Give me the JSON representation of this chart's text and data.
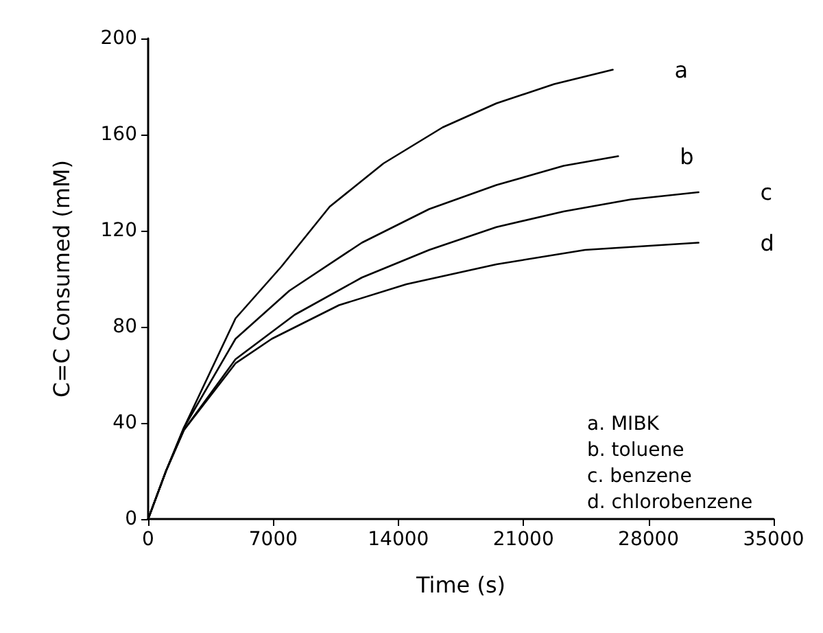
{
  "chart_data": {
    "type": "line",
    "xlabel": "Time (s)",
    "ylabel": "C=C Consumed (mM)",
    "xlim": [
      0,
      35000
    ],
    "xticks": [
      0,
      7000,
      14000,
      21000,
      28000,
      35000
    ],
    "ylim": [
      0,
      200
    ],
    "yticks": [
      0,
      40,
      80,
      120,
      160,
      200
    ],
    "grid": false,
    "legend": false,
    "marker": "none",
    "line_style": "solid",
    "annotations": [
      "a. MIBK",
      "b. toluene",
      "c. benzene",
      "d. chlorobenzene"
    ],
    "series": [
      {
        "name": "a",
        "color": "#000000",
        "x": [
          0,
          1000,
          2000,
          4890,
          7450,
          10160,
          13170,
          16480,
          19490,
          22720,
          26000
        ],
        "values": [
          0,
          20,
          38,
          83.5,
          105,
          130,
          148,
          163,
          173,
          181,
          187
        ]
      },
      {
        "name": "b",
        "color": "#000000",
        "x": [
          0,
          1000,
          2000,
          4890,
          7900,
          11960,
          15730,
          19490,
          23250,
          26300
        ],
        "values": [
          0,
          20,
          38,
          75,
          95,
          115,
          129,
          139,
          147,
          151
        ]
      },
      {
        "name": "c",
        "color": "#000000",
        "x": [
          0,
          1000,
          2000,
          4890,
          8200,
          11960,
          15730,
          19490,
          23250,
          27010,
          30800
        ],
        "values": [
          0,
          20,
          37,
          66.5,
          85,
          100.5,
          112,
          121.5,
          128,
          133,
          136
        ]
      },
      {
        "name": "d",
        "color": "#000000",
        "x": [
          0,
          1000,
          2000,
          4890,
          6920,
          10680,
          14450,
          19490,
          24450,
          30800
        ],
        "values": [
          0,
          20,
          37,
          64.8,
          75,
          89,
          97.7,
          106,
          112,
          115
        ]
      }
    ]
  }
}
